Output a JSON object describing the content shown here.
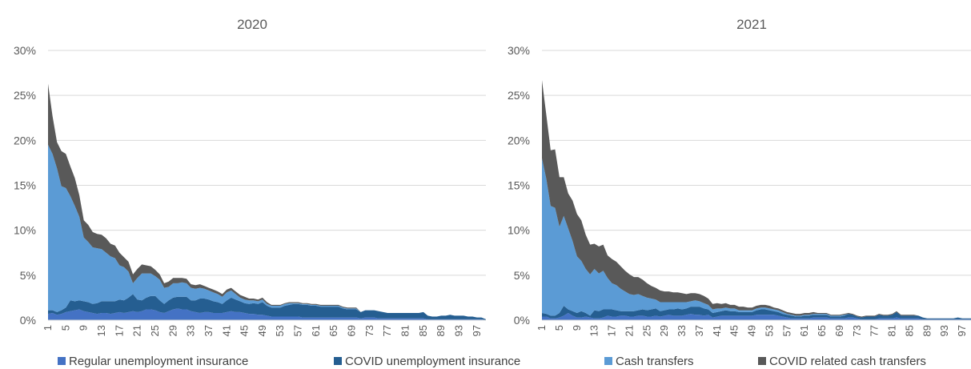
{
  "colors": {
    "regular_ui": "#4472C4",
    "covid_ui": "#255E91",
    "cash": "#5B9BD5",
    "covid_cash": "#595959",
    "grid": "#D9D9D9",
    "text": "#595959"
  },
  "legend": [
    {
      "label": "Regular unemployment insurance",
      "color": "#4472C4"
    },
    {
      "label": "COVID unemployment insurance",
      "color": "#255E91"
    },
    {
      "label": "Cash transfers",
      "color": "#5B9BD5"
    },
    {
      "label": "COVID related cash transfers",
      "color": "#595959"
    }
  ],
  "chart_data": [
    {
      "type": "area",
      "stacked": true,
      "title": "2020",
      "x_tick_labels": [
        "1",
        "5",
        "9",
        "13",
        "17",
        "21",
        "25",
        "29",
        "33",
        "37",
        "41",
        "45",
        "49",
        "53",
        "57",
        "61",
        "65",
        "69",
        "73",
        "77",
        "81",
        "85",
        "89",
        "93",
        "97"
      ],
      "x_range": [
        1,
        99
      ],
      "ylim": [
        0,
        30
      ],
      "y_tick_labels": [
        "0%",
        "5%",
        "10%",
        "15%",
        "20%",
        "25%",
        "30%"
      ],
      "grid": true,
      "legend_position": "bottom",
      "series": [
        {
          "name": "Regular unemployment insurance",
          "values": [
            0.7,
            0.8,
            0.6,
            0.7,
            0.9,
            1.0,
            1.1,
            1.2,
            1.0,
            0.9,
            0.8,
            0.7,
            0.8,
            0.8,
            0.7,
            0.8,
            0.9,
            0.8,
            0.9,
            1.0,
            0.9,
            1.0,
            1.2,
            1.2,
            1.1,
            0.9,
            0.8,
            1.0,
            1.2,
            1.3,
            1.2,
            1.2,
            1.0,
            0.9,
            0.8,
            0.9,
            0.9,
            0.8,
            0.8,
            0.8,
            0.9,
            1.0,
            0.9,
            0.9,
            0.8,
            0.7,
            0.7,
            0.6,
            0.6,
            0.5,
            0.4,
            0.4,
            0.4,
            0.4,
            0.4,
            0.4,
            0.4,
            0.3,
            0.3,
            0.3,
            0.3,
            0.3,
            0.3,
            0.3,
            0.3,
            0.3,
            0.3,
            0.3,
            0.3,
            0.3,
            0.2,
            0.3,
            0.3,
            0.3,
            0.2,
            0.2,
            0.2,
            0.2,
            0.2,
            0.2,
            0.2,
            0.2,
            0.2,
            0.2,
            0.2,
            0.1,
            0.1,
            0.1,
            0.1,
            0.1,
            0.1,
            0.1,
            0.1,
            0.1,
            0.1,
            0.1,
            0.1,
            0.1,
            0.0
          ]
        },
        {
          "name": "COVID unemployment insurance",
          "values": [
            0.4,
            0.3,
            0.3,
            0.4,
            0.5,
            1.2,
            1.0,
            1.0,
            1.1,
            1.1,
            1.0,
            1.2,
            1.3,
            1.3,
            1.4,
            1.3,
            1.4,
            1.4,
            1.6,
            1.9,
            1.4,
            1.2,
            1.3,
            1.5,
            1.6,
            1.3,
            1.0,
            1.2,
            1.3,
            1.3,
            1.4,
            1.4,
            1.2,
            1.3,
            1.6,
            1.5,
            1.4,
            1.3,
            1.2,
            1.0,
            1.3,
            1.5,
            1.4,
            1.2,
            1.1,
            1.1,
            1.2,
            1.2,
            1.4,
            1.1,
            1.0,
            1.0,
            1.0,
            1.2,
            1.3,
            1.4,
            1.4,
            1.4,
            1.4,
            1.3,
            1.3,
            1.2,
            1.2,
            1.2,
            1.2,
            1.2,
            1.0,
            0.9,
            0.9,
            0.9,
            0.7,
            0.8,
            0.8,
            0.8,
            0.8,
            0.7,
            0.6,
            0.6,
            0.6,
            0.6,
            0.6,
            0.6,
            0.6,
            0.6,
            0.7,
            0.4,
            0.3,
            0.3,
            0.4,
            0.4,
            0.5,
            0.4,
            0.4,
            0.4,
            0.3,
            0.3,
            0.2,
            0.2,
            0.1
          ]
        },
        {
          "name": "Cash transfers",
          "values": [
            18.4,
            17.4,
            16.0,
            13.8,
            13.3,
            11.6,
            10.6,
            9.3,
            7.1,
            6.7,
            6.3,
            6.1,
            5.8,
            5.4,
            5.0,
            4.8,
            3.8,
            3.7,
            2.9,
            1.2,
            2.4,
            3.0,
            2.7,
            2.5,
            2.2,
            2.3,
            1.8,
            1.5,
            1.6,
            1.5,
            1.6,
            1.5,
            1.4,
            1.3,
            1.2,
            1.1,
            1.0,
            1.0,
            0.9,
            0.8,
            0.9,
            0.8,
            0.6,
            0.4,
            0.4,
            0.4,
            0.3,
            0.3,
            0.3,
            0.2,
            0.2,
            0.2,
            0.2,
            0.2,
            0.2,
            0.1,
            0.1,
            0.1,
            0.1,
            0.1,
            0.1,
            0.1,
            0.1,
            0.1,
            0.1,
            0.1,
            0.1,
            0.1,
            0.1,
            0.1,
            0.0,
            0.0,
            0.0,
            0.0,
            0.0,
            0.0,
            0.0,
            0.0,
            0.0,
            0.0,
            0.0,
            0.0,
            0.0,
            0.0,
            0.0,
            0.0,
            0.0,
            0.0,
            0.0,
            0.0,
            0.0,
            0.0,
            0.0,
            0.0,
            0.0,
            0.0,
            0.0,
            0.0,
            0.0
          ]
        },
        {
          "name": "COVID related cash transfers",
          "values": [
            6.8,
            4.2,
            2.9,
            3.9,
            3.8,
            3.3,
            3.1,
            2.4,
            1.9,
            1.9,
            1.7,
            1.6,
            1.6,
            1.6,
            1.4,
            1.4,
            1.4,
            1.1,
            1.1,
            1.0,
            1.0,
            1.0,
            0.9,
            0.8,
            0.7,
            0.6,
            0.5,
            0.6,
            0.6,
            0.6,
            0.5,
            0.5,
            0.4,
            0.4,
            0.4,
            0.3,
            0.3,
            0.3,
            0.3,
            0.3,
            0.3,
            0.3,
            0.3,
            0.3,
            0.3,
            0.2,
            0.2,
            0.2,
            0.2,
            0.2,
            0.1,
            0.1,
            0.1,
            0.1,
            0.1,
            0.1,
            0.1,
            0.1,
            0.1,
            0.1,
            0.1,
            0.1,
            0.1,
            0.1,
            0.1,
            0.1,
            0.1,
            0.1,
            0.1,
            0.1,
            0.0,
            0.0,
            0.0,
            0.0,
            0.0,
            0.0,
            0.0,
            0.0,
            0.0,
            0.0,
            0.0,
            0.0,
            0.0,
            0.0,
            0.0,
            0.0,
            0.0,
            0.0,
            0.0,
            0.0,
            0.0,
            0.0,
            0.0,
            0.0,
            0.0,
            0.0,
            0.0,
            0.0,
            0.0
          ]
        }
      ]
    },
    {
      "type": "area",
      "stacked": true,
      "title": "2021",
      "x_tick_labels": [
        "1",
        "5",
        "9",
        "13",
        "17",
        "21",
        "25",
        "29",
        "33",
        "37",
        "41",
        "45",
        "49",
        "53",
        "57",
        "61",
        "65",
        "69",
        "73",
        "77",
        "81",
        "85",
        "89",
        "93",
        "97"
      ],
      "x_range": [
        1,
        99
      ],
      "ylim": [
        0,
        30
      ],
      "y_tick_labels": [
        "0%",
        "5%",
        "10%",
        "15%",
        "20%",
        "25%",
        "30%"
      ],
      "grid": true,
      "legend_position": "bottom",
      "series": [
        {
          "name": "Regular unemployment insurance",
          "values": [
            0.4,
            0.4,
            0.2,
            0.2,
            0.3,
            0.5,
            0.8,
            0.5,
            0.3,
            0.3,
            0.4,
            0.3,
            0.2,
            0.2,
            0.3,
            0.5,
            0.4,
            0.4,
            0.5,
            0.5,
            0.4,
            0.4,
            0.5,
            0.5,
            0.4,
            0.4,
            0.5,
            0.4,
            0.5,
            0.6,
            0.5,
            0.5,
            0.5,
            0.6,
            0.7,
            0.6,
            0.6,
            0.5,
            0.6,
            0.3,
            0.4,
            0.5,
            0.5,
            0.5,
            0.5,
            0.5,
            0.5,
            0.5,
            0.5,
            0.6,
            0.6,
            0.6,
            0.6,
            0.6,
            0.5,
            0.4,
            0.3,
            0.2,
            0.2,
            0.2,
            0.2,
            0.2,
            0.3,
            0.3,
            0.3,
            0.3,
            0.2,
            0.2,
            0.2,
            0.2,
            0.3,
            0.3,
            0.2,
            0.1,
            0.1,
            0.1,
            0.1,
            0.2,
            0.2,
            0.2,
            0.2,
            0.3,
            0.2,
            0.2,
            0.2,
            0.2,
            0.2,
            0.1,
            0.1,
            0.1,
            0.1,
            0.1,
            0.1,
            0.1,
            0.1,
            0.1,
            0.1,
            0.1,
            0.1
          ]
        },
        {
          "name": "COVID unemployment insurance",
          "values": [
            0.4,
            0.3,
            0.3,
            0.3,
            0.5,
            1.1,
            0.4,
            0.5,
            0.5,
            0.7,
            0.4,
            0.2,
            0.9,
            0.8,
            0.9,
            0.7,
            0.8,
            0.7,
            0.5,
            0.5,
            0.6,
            0.6,
            0.6,
            0.7,
            0.7,
            0.8,
            0.8,
            0.6,
            0.6,
            0.6,
            0.7,
            0.8,
            0.7,
            0.7,
            0.8,
            0.9,
            0.9,
            0.8,
            0.6,
            0.5,
            0.5,
            0.5,
            0.6,
            0.5,
            0.5,
            0.4,
            0.4,
            0.4,
            0.4,
            0.5,
            0.6,
            0.6,
            0.5,
            0.4,
            0.4,
            0.3,
            0.3,
            0.3,
            0.2,
            0.2,
            0.3,
            0.3,
            0.3,
            0.3,
            0.3,
            0.3,
            0.2,
            0.2,
            0.2,
            0.3,
            0.4,
            0.3,
            0.2,
            0.2,
            0.3,
            0.3,
            0.3,
            0.4,
            0.3,
            0.3,
            0.4,
            0.6,
            0.3,
            0.3,
            0.3,
            0.3,
            0.3,
            0.2,
            0.1,
            0.1,
            0.1,
            0.1,
            0.1,
            0.1,
            0.1,
            0.2,
            0.1,
            0.1,
            0.1
          ]
        },
        {
          "name": "Cash transfers",
          "values": [
            17.2,
            15.0,
            12.2,
            12.0,
            9.6,
            10.0,
            9.0,
            7.8,
            6.3,
            5.6,
            4.9,
            4.6,
            4.6,
            4.2,
            4.3,
            3.5,
            2.9,
            2.8,
            2.5,
            2.2,
            1.9,
            1.8,
            1.8,
            1.5,
            1.4,
            1.2,
            1.0,
            1.0,
            0.9,
            0.8,
            0.8,
            0.7,
            0.8,
            0.7,
            0.6,
            0.7,
            0.6,
            0.6,
            0.5,
            0.4,
            0.4,
            0.3,
            0.3,
            0.3,
            0.3,
            0.2,
            0.2,
            0.2,
            0.2,
            0.2,
            0.2,
            0.2,
            0.2,
            0.2,
            0.2,
            0.2,
            0.1,
            0.1,
            0.1,
            0.1,
            0.1,
            0.1,
            0.1,
            0.1,
            0.1,
            0.1,
            0.1,
            0.1,
            0.1,
            0.1,
            0.0,
            0.0,
            0.0,
            0.0,
            0.0,
            0.0,
            0.0,
            0.0,
            0.0,
            0.0,
            0.0,
            0.0,
            0.0,
            0.0,
            0.0,
            0.0,
            0.0,
            0.0,
            0.0,
            0.0,
            0.0,
            0.0,
            0.0,
            0.0,
            0.0,
            0.0,
            0.0,
            0.0,
            0.0
          ]
        },
        {
          "name": "COVID related cash transfers",
          "values": [
            8.7,
            7.1,
            6.2,
            6.5,
            5.5,
            4.3,
            3.9,
            4.5,
            4.7,
            4.5,
            3.8,
            3.3,
            2.8,
            3.0,
            2.9,
            2.5,
            2.7,
            2.6,
            2.5,
            2.3,
            2.2,
            2.0,
            1.9,
            1.8,
            1.6,
            1.4,
            1.3,
            1.3,
            1.2,
            1.2,
            1.1,
            1.1,
            1.0,
            0.9,
            0.9,
            0.8,
            0.8,
            0.8,
            0.7,
            0.6,
            0.6,
            0.5,
            0.5,
            0.4,
            0.4,
            0.4,
            0.4,
            0.3,
            0.3,
            0.3,
            0.3,
            0.3,
            0.3,
            0.2,
            0.2,
            0.2,
            0.2,
            0.2,
            0.2,
            0.2,
            0.2,
            0.2,
            0.2,
            0.1,
            0.1,
            0.1,
            0.1,
            0.1,
            0.1,
            0.1,
            0.1,
            0.1,
            0.1,
            0.1,
            0.1,
            0.1,
            0.1,
            0.1,
            0.1,
            0.1,
            0.1,
            0.1,
            0.1,
            0.1,
            0.1,
            0.1,
            0.0,
            0.0,
            0.0,
            0.0,
            0.0,
            0.0,
            0.0,
            0.0,
            0.0,
            0.0,
            0.0,
            0.0,
            0.0
          ]
        }
      ]
    }
  ]
}
